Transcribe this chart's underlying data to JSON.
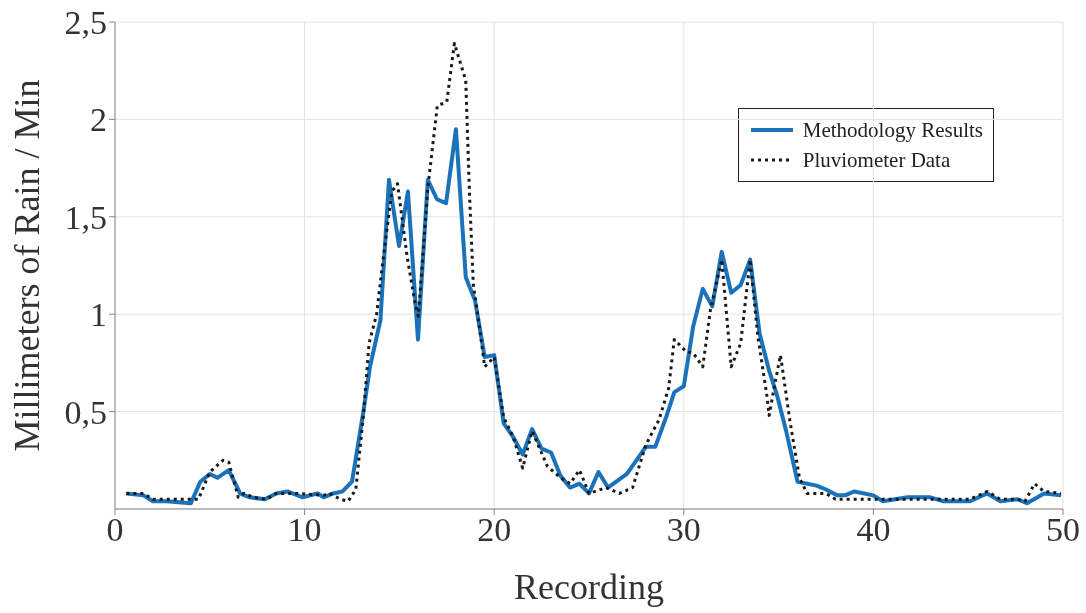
{
  "chart_data": {
    "type": "line",
    "xlabel": "Recording",
    "ylabel": "Millimeters of Rain / Min",
    "xlim": [
      0,
      50
    ],
    "xticks": [
      0,
      10,
      20,
      30,
      40,
      50
    ],
    "ylim": [
      0,
      2.5
    ],
    "yticks": [
      {
        "value": 0.5,
        "label": "0,5"
      },
      1,
      {
        "value": 1.5,
        "label": "1,5"
      },
      2,
      {
        "value": 2.5,
        "label": "2,5"
      }
    ],
    "grid": true,
    "legend": "top right",
    "series": [
      {
        "name": "Methodology Results",
        "color": "#1a72bb",
        "line_style": "solid",
        "x": [
          0.6,
          1.5,
          2,
          2.7,
          4,
          4.5,
          5,
          5.4,
          6,
          6.6,
          7.1,
          7.9,
          8.5,
          9.1,
          9.9,
          10.7,
          11,
          11.5,
          12,
          12.5,
          13.1,
          13.45,
          14,
          14.45,
          14.98,
          15.45,
          15.98,
          16.5,
          16.98,
          17.46,
          17.98,
          18.5,
          18.99,
          19.5,
          20,
          20.5,
          21,
          21.5,
          22,
          22.5,
          23,
          23.5,
          24,
          24.5,
          25,
          25.5,
          26,
          27,
          27.5,
          28,
          28.5,
          29.1,
          29.5,
          30,
          30.5,
          31,
          31.5,
          32,
          32.5,
          33,
          33.5,
          34,
          34.5,
          34.9,
          35.4,
          36,
          37,
          37.5,
          38.1,
          38.5,
          39,
          40,
          40.5,
          41.8,
          43,
          43.7,
          45.1,
          46,
          46.7,
          47.6,
          48.1,
          49,
          49.9
        ],
        "values": [
          0.08,
          0.07,
          0.04,
          0.04,
          0.03,
          0.14,
          0.18,
          0.16,
          0.2,
          0.08,
          0.06,
          0.05,
          0.08,
          0.09,
          0.06,
          0.08,
          0.06,
          0.08,
          0.09,
          0.14,
          0.5,
          0.73,
          0.97,
          1.69,
          1.35,
          1.63,
          0.87,
          1.69,
          1.59,
          1.57,
          1.95,
          1.19,
          1.07,
          0.78,
          0.79,
          0.44,
          0.37,
          0.28,
          0.41,
          0.31,
          0.29,
          0.17,
          0.11,
          0.13,
          0.08,
          0.19,
          0.11,
          0.18,
          0.25,
          0.32,
          0.32,
          0.48,
          0.6,
          0.63,
          0.94,
          1.13,
          1.04,
          1.32,
          1.11,
          1.15,
          1.28,
          0.9,
          0.71,
          0.59,
          0.4,
          0.14,
          0.12,
          0.1,
          0.07,
          0.07,
          0.09,
          0.07,
          0.04,
          0.06,
          0.06,
          0.04,
          0.04,
          0.08,
          0.04,
          0.05,
          0.03,
          0.08,
          0.07
        ]
      },
      {
        "name": "Pluviometer Data",
        "color": "#1a1a1a",
        "line_style": "dotted",
        "x": [
          0.6,
          1.5,
          2,
          4,
          4.4,
          5,
          5.7,
          6,
          6.5,
          6.8,
          7.3,
          8,
          8.5,
          9.6,
          11,
          11.3,
          11.9,
          12.3,
          12.7,
          13.1,
          13.4,
          13.8,
          14.1,
          14.6,
          14.9,
          15.4,
          15.8,
          16,
          16.5,
          17,
          17.5,
          17.9,
          18.5,
          18.7,
          18.9,
          19.1,
          19.5,
          20,
          20.5,
          21,
          21.5,
          22,
          22.8,
          23.5,
          24,
          24.5,
          25,
          25.9,
          26.6,
          27.3,
          28,
          28.7,
          29.2,
          29.5,
          30.1,
          30.5,
          31,
          31.4,
          32,
          32.5,
          33,
          33.5,
          33.9,
          34.4,
          34.5,
          34.8,
          35.1,
          35.6,
          36.1,
          36.5,
          37.5,
          38,
          40,
          40.5,
          45.1,
          46,
          46.7,
          47.6,
          48,
          48.5,
          49,
          49.9
        ],
        "values": [
          0.08,
          0.08,
          0.05,
          0.05,
          0.05,
          0.19,
          0.25,
          0.24,
          0.06,
          0.08,
          0.06,
          0.05,
          0.08,
          0.08,
          0.07,
          0.08,
          0.05,
          0.04,
          0.1,
          0.48,
          0.85,
          1,
          1.25,
          1.63,
          1.67,
          1.3,
          1.07,
          0.99,
          1.65,
          2.07,
          2.09,
          2.39,
          2.2,
          1.61,
          1.15,
          1.02,
          0.73,
          0.78,
          0.47,
          0.37,
          0.21,
          0.4,
          0.22,
          0.16,
          0.13,
          0.2,
          0.08,
          0.11,
          0.08,
          0.11,
          0.33,
          0.46,
          0.62,
          0.87,
          0.81,
          0.8,
          0.73,
          1.02,
          1.28,
          0.73,
          0.85,
          1.28,
          0.89,
          0.57,
          0.48,
          0.64,
          0.79,
          0.45,
          0.16,
          0.08,
          0.08,
          0.05,
          0.05,
          0.05,
          0.05,
          0.09,
          0.05,
          0.05,
          0.04,
          0.13,
          0.09,
          0.08
        ]
      }
    ]
  }
}
